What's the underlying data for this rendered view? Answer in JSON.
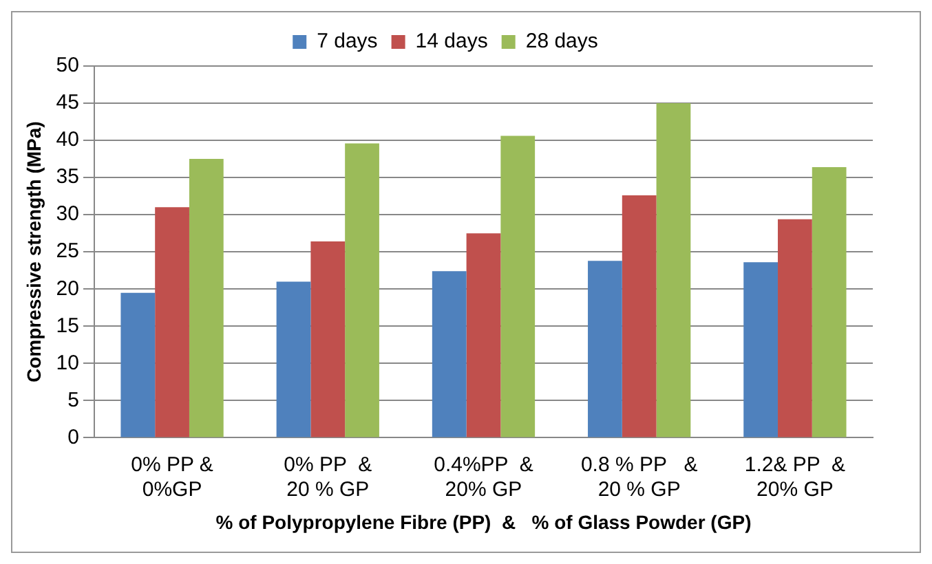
{
  "chart_data": {
    "type": "bar",
    "xlabel": "% of Polypropylene Fibre (PP)  &   % of Glass Powder (GP)",
    "ylabel": "Compressive strength (MPa)",
    "categories": [
      "0% PP &\n0%GP",
      "0% PP  &\n20 % GP",
      "0.4%PP  &\n20% GP",
      "0.8 % PP   &\n20 % GP",
      "1.2& PP  &\n20% GP"
    ],
    "series": [
      {
        "name": "7 days",
        "color": "#4f81bd",
        "values": [
          19.5,
          21,
          22.4,
          23.8,
          23.6
        ]
      },
      {
        "name": "14 days",
        "color": "#c0504d",
        "values": [
          31,
          26.4,
          27.5,
          32.6,
          29.4
        ]
      },
      {
        "name": "28 days",
        "color": "#9bbb59",
        "values": [
          37.5,
          39.6,
          40.6,
          45,
          36.4
        ]
      }
    ],
    "ylim": [
      0,
      50
    ],
    "yticks": [
      0,
      5,
      10,
      15,
      20,
      25,
      30,
      35,
      40,
      45,
      50
    ],
    "grid": "y",
    "legend": "top"
  }
}
